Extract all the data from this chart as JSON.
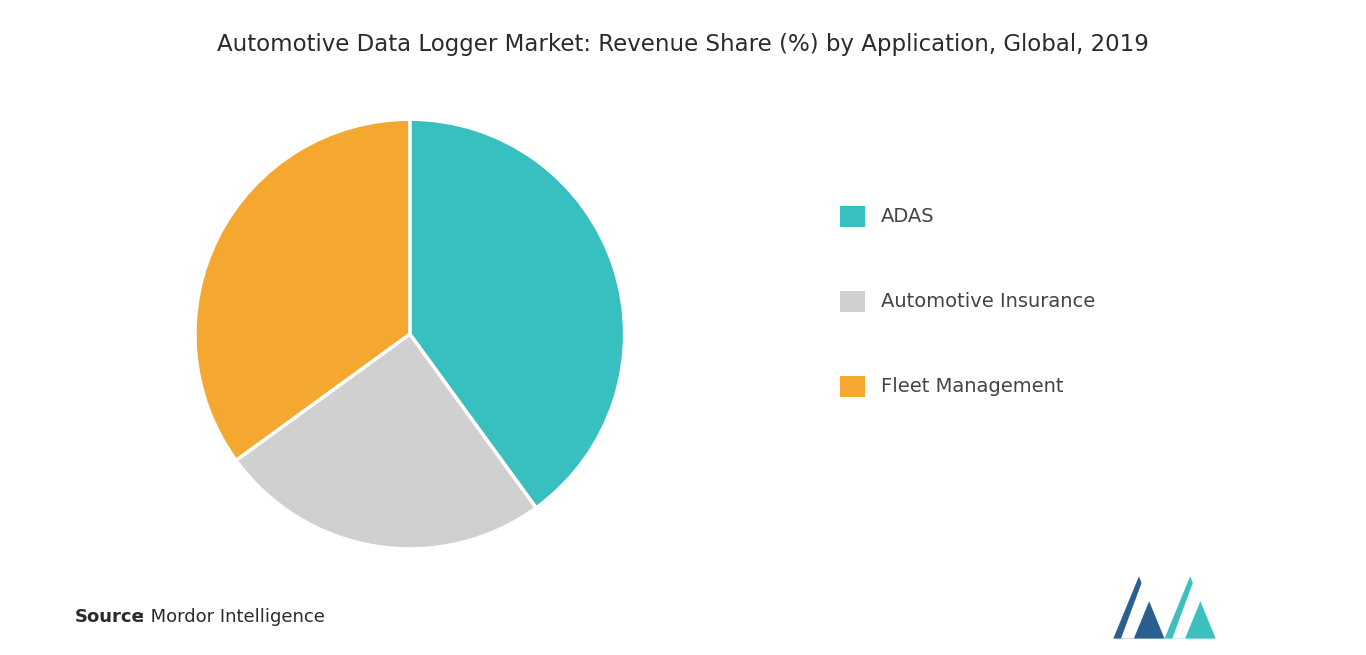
{
  "title": "Automotive Data Logger Market: Revenue Share (%) by Application, Global, 2019",
  "slices": [
    40,
    25,
    35
  ],
  "labels": [
    "ADAS",
    "Automotive Insurance",
    "Fleet Management"
  ],
  "colors": [
    "#38bfbf",
    "#d0d0d0",
    "#f5a830"
  ],
  "legend_colors": [
    "#38bfbf",
    "#d0d0d0",
    "#f5a830"
  ],
  "startangle": 90,
  "source_bold": "Source",
  "source_rest": " : Mordor Intelligence",
  "background_color": "#ffffff",
  "title_fontsize": 16.5,
  "legend_fontsize": 14,
  "source_fontsize": 13
}
